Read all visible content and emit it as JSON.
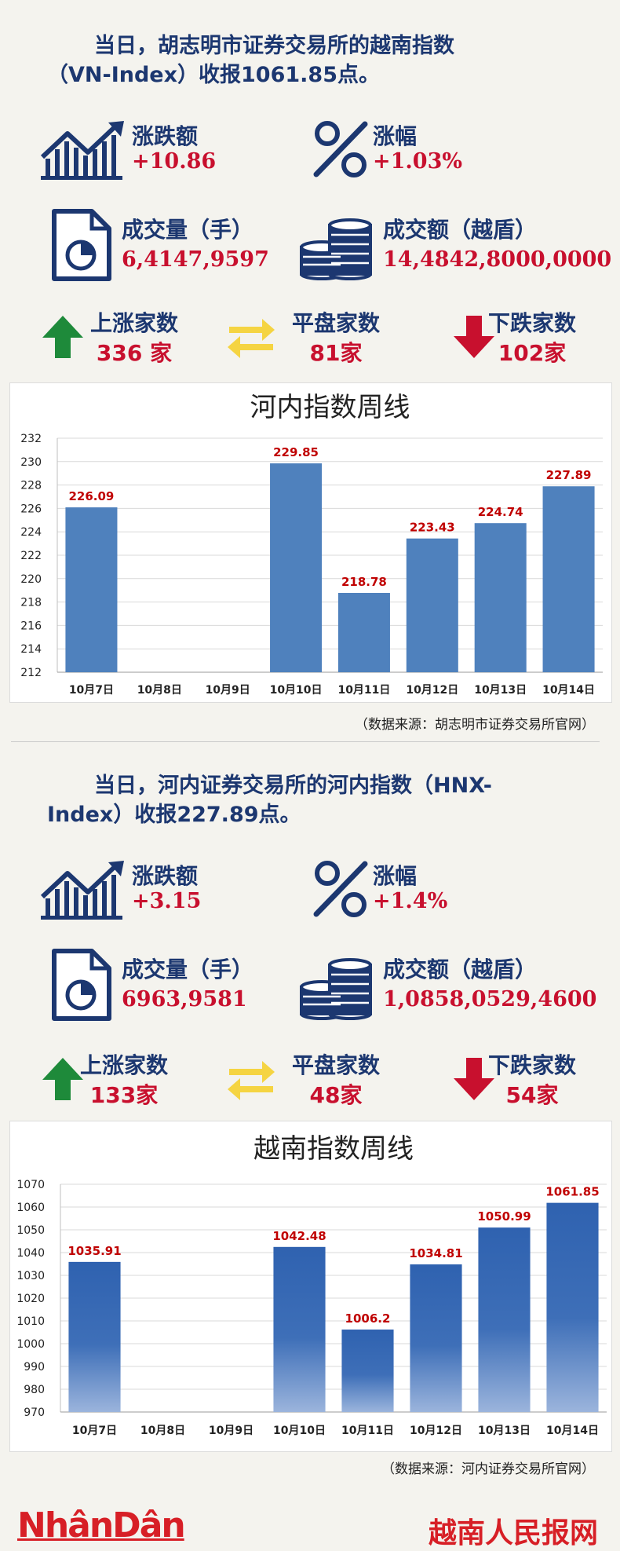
{
  "section1": {
    "headline_line1": "当日，胡志明市证券交易所的越南指数",
    "headline_line2": "（VN-Index）收报1061.85点。",
    "change_label": "涨跌额",
    "change_value": "+10.86",
    "pct_label": "涨幅",
    "pct_value": "+1.03%",
    "volume_label": "成交量（手）",
    "volume_value": "6,4147,9597",
    "turnover_label": "成交额（越盾）",
    "turnover_value": "14,4842,8000,0000",
    "up_label": "上涨家数",
    "up_value": "336 家",
    "flat_label": "平盘家数",
    "flat_value": "81家",
    "down_label": "下跌家数",
    "down_value": "102家",
    "source": "（数据来源：胡志明市证券交易所官网）"
  },
  "section2": {
    "headline_line1": "当日，河内证券交易所的河内指数（HNX-",
    "headline_line2": "Index）收报227.89点。",
    "change_label": "涨跌额",
    "change_value": "+3.15",
    "pct_label": "涨幅",
    "pct_value": "+1.4%",
    "volume_label": "成交量（手）",
    "volume_value": "6963,9581",
    "turnover_label": "成交额（越盾）",
    "turnover_value": "1,0858,0529,4600",
    "up_label": "上涨家数",
    "up_value": "133家",
    "flat_label": "平盘家数",
    "flat_value": "48家",
    "down_label": "下跌家数",
    "down_value": "54家",
    "source": "（数据来源：河内证券交易所官网）"
  },
  "colors": {
    "navy": "#1c3770",
    "red": "#c8102e",
    "bar": "#4f81bd",
    "up_arrow": "#1e8a3a",
    "down_arrow": "#c8102e",
    "flat_arrow": "#f5d442"
  },
  "icons": {
    "change": "bar-chart-up-icon",
    "pct": "percent-icon",
    "volume": "document-pie-icon",
    "turnover": "coin-stack-icon",
    "up": "arrow-up-icon",
    "flat": "arrows-left-right-icon",
    "down": "arrow-down-icon"
  },
  "chart_data": [
    {
      "type": "bar",
      "title": "河内指数周线",
      "categories": [
        "10月7日",
        "10月8日",
        "10月9日",
        "10月10日",
        "10月11日",
        "10月12日",
        "10月13日",
        "10月14日"
      ],
      "values": [
        226.09,
        null,
        null,
        229.85,
        218.78,
        223.43,
        224.74,
        227.89
      ],
      "data_labels": [
        "226.09",
        "",
        "",
        "229.85",
        "218.78",
        "223.43",
        "224.74",
        "227.89"
      ],
      "ylim": [
        212,
        232
      ],
      "yticks": [
        212,
        214,
        216,
        218,
        220,
        222,
        224,
        226,
        228,
        230,
        232
      ],
      "grid": true,
      "bar_style": "flat"
    },
    {
      "type": "bar",
      "title": "越南指数周线",
      "categories": [
        "10月7日",
        "10月8日",
        "10月9日",
        "10月10日",
        "10月11日",
        "10月12日",
        "10月13日",
        "10月14日"
      ],
      "values": [
        1035.91,
        null,
        null,
        1042.48,
        1006.2,
        1034.81,
        1050.99,
        1061.85
      ],
      "data_labels": [
        "1035.91",
        "",
        "",
        "1042.48",
        "1006.2",
        "1034.81",
        "1050.99",
        "1061.85"
      ],
      "ylim": [
        970,
        1070
      ],
      "yticks": [
        970,
        980,
        990,
        1000,
        1010,
        1020,
        1030,
        1040,
        1050,
        1060,
        1070
      ],
      "grid": true,
      "bar_style": "gradient"
    }
  ],
  "footer": {
    "brand_latin": "NhânDân",
    "brand_cn": "越南人民报网"
  }
}
